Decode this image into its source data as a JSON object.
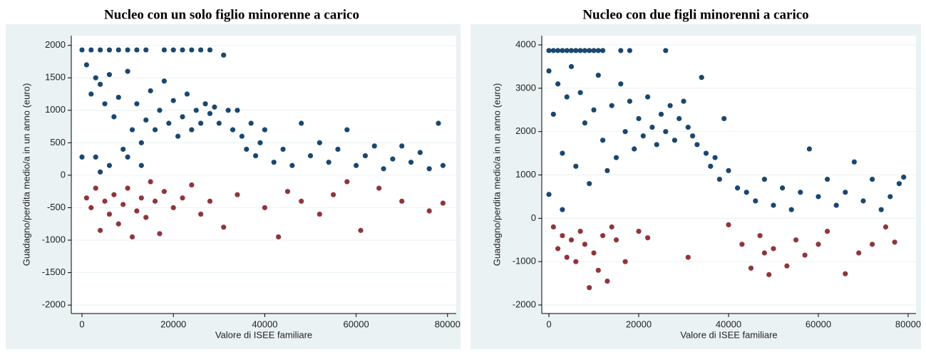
{
  "chart_data": [
    {
      "type": "scatter",
      "title": "Nucleo con un solo figlio minorenne a carico",
      "x_label": "Valore di ISEE familiare",
      "y_label": "Guadagno/perdita medio/a in un anno (euro)",
      "xlim": [
        -2340,
        81900
      ],
      "ylim": [
        -2130,
        2150
      ],
      "xticks": [
        0,
        20000,
        40000,
        60000,
        80000
      ],
      "yticks": [
        -2000,
        -1500,
        -1000,
        -500,
        0,
        500,
        1000,
        1500,
        2000
      ],
      "grid": true,
      "series": [
        {
          "color": "#1a476f",
          "x": [
            0,
            2000,
            4000,
            6000,
            8000,
            10000,
            12000,
            14000,
            18000,
            20000,
            22000,
            24000,
            26000,
            28000,
            1000,
            2000,
            3000,
            4000,
            5000,
            6000,
            7000,
            8000,
            9000,
            10000,
            11000,
            12000,
            13000,
            14000,
            15000,
            16000,
            17000,
            18000,
            19000,
            20000,
            21000,
            22000,
            23000,
            24000,
            25000,
            26000,
            27000,
            28000,
            29000,
            30000,
            31000,
            32000,
            33000,
            34000,
            35000,
            36000,
            37000,
            38000,
            39000,
            40000,
            42000,
            44000,
            46000,
            48000,
            50000,
            52000,
            54000,
            56000,
            58000,
            60000,
            62000,
            64000,
            66000,
            68000,
            70000,
            72000,
            74000,
            76000,
            78000,
            79000,
            0,
            3000,
            4000,
            6000,
            10000,
            13000
          ],
          "values": [
            1930,
            1930,
            1930,
            1930,
            1930,
            1930,
            1930,
            1930,
            1930,
            1930,
            1930,
            1930,
            1930,
            1930,
            1700,
            1250,
            1500,
            1400,
            1100,
            1550,
            900,
            1200,
            400,
            1600,
            700,
            1100,
            500,
            850,
            1300,
            700,
            1000,
            1450,
            800,
            1150,
            600,
            900,
            1250,
            700,
            1000,
            800,
            1100,
            950,
            1050,
            800,
            1850,
            1000,
            700,
            1000,
            600,
            400,
            800,
            300,
            500,
            700,
            200,
            400,
            150,
            800,
            300,
            500,
            200,
            400,
            700,
            150,
            300,
            450,
            100,
            250,
            450,
            200,
            350,
            100,
            800,
            150,
            280,
            280,
            50,
            150,
            280,
            150
          ]
        },
        {
          "color": "#90353b",
          "x": [
            1000,
            2000,
            3000,
            4000,
            5000,
            6000,
            7000,
            8000,
            9000,
            10000,
            11000,
            12000,
            13000,
            14000,
            15000,
            16000,
            17000,
            18000,
            20000,
            22000,
            24000,
            26000,
            28000,
            31000,
            34000,
            40000,
            43000,
            45000,
            48000,
            52000,
            55000,
            58000,
            61000,
            65000,
            70000,
            76000,
            79000
          ],
          "values": [
            -350,
            -500,
            -200,
            -850,
            -400,
            -600,
            -300,
            -750,
            -450,
            -200,
            -950,
            -550,
            -350,
            -650,
            -100,
            -400,
            -900,
            -250,
            -500,
            -350,
            -150,
            -600,
            -400,
            -800,
            -300,
            -500,
            -950,
            -250,
            -400,
            -600,
            -300,
            -100,
            -850,
            -200,
            -400,
            -550,
            -430
          ]
        }
      ]
    },
    {
      "type": "scatter",
      "title": "Nucleo con due figli minorenni a carico",
      "x_label": "Valore di ISEE familiare",
      "y_label": "Guadagno/perdita medio/a in un anno (euro)",
      "xlim": [
        -1590,
        81750
      ],
      "ylim": [
        -2197,
        4214
      ],
      "xticks": [
        0,
        20000,
        40000,
        60000,
        80000
      ],
      "yticks": [
        -2000,
        -1000,
        0,
        1000,
        2000,
        3000,
        4000
      ],
      "grid": true,
      "series": [
        {
          "color": "#1a476f",
          "x": [
            0,
            1000,
            2000,
            3000,
            4000,
            5000,
            6000,
            7000,
            8000,
            9000,
            10000,
            11000,
            12000,
            16000,
            18000,
            26000,
            0,
            1000,
            2000,
            3000,
            4000,
            5000,
            6000,
            7000,
            8000,
            9000,
            10000,
            11000,
            12000,
            13000,
            14000,
            15000,
            16000,
            17000,
            18000,
            19000,
            20000,
            21000,
            22000,
            23000,
            24000,
            25000,
            26000,
            27000,
            28000,
            29000,
            30000,
            31000,
            32000,
            33000,
            34000,
            35000,
            36000,
            37000,
            38000,
            39000,
            40000,
            42000,
            44000,
            46000,
            48000,
            50000,
            52000,
            54000,
            56000,
            58000,
            60000,
            62000,
            64000,
            66000,
            68000,
            70000,
            72000,
            74000,
            76000,
            78000,
            79000,
            0,
            3000
          ],
          "values": [
            3870,
            3870,
            3870,
            3870,
            3870,
            3870,
            3870,
            3870,
            3870,
            3870,
            3870,
            3870,
            3870,
            3870,
            3870,
            3870,
            3400,
            2400,
            3100,
            1500,
            2800,
            3500,
            1200,
            2900,
            2200,
            800,
            2500,
            3300,
            1800,
            1100,
            2600,
            1400,
            3100,
            2000,
            2700,
            1600,
            2300,
            1900,
            2800,
            2100,
            1700,
            2400,
            2000,
            2600,
            1800,
            2300,
            2700,
            2100,
            1900,
            1700,
            3250,
            1500,
            1200,
            1400,
            900,
            2300,
            1100,
            700,
            600,
            400,
            900,
            300,
            700,
            200,
            600,
            1600,
            500,
            900,
            300,
            600,
            1300,
            400,
            900,
            200,
            500,
            800,
            950,
            550,
            200
          ]
        },
        {
          "color": "#90353b",
          "x": [
            1000,
            2000,
            3000,
            4000,
            5000,
            6000,
            7000,
            8000,
            9000,
            10000,
            11000,
            12000,
            13000,
            14000,
            15000,
            17000,
            20000,
            22000,
            31000,
            40000,
            43000,
            45000,
            47000,
            48000,
            49000,
            50000,
            53000,
            55000,
            57000,
            60000,
            62000,
            66000,
            69000,
            72000,
            75000,
            77000
          ],
          "values": [
            -200,
            -700,
            -400,
            -900,
            -500,
            -1000,
            -300,
            -600,
            -1600,
            -800,
            -1200,
            -400,
            -1450,
            -200,
            -500,
            -1000,
            -300,
            -450,
            -900,
            -150,
            -600,
            -1150,
            -400,
            -800,
            -1300,
            -700,
            -1100,
            -500,
            -850,
            -600,
            -300,
            -1280,
            -800,
            -600,
            -200,
            -550
          ]
        }
      ]
    }
  ]
}
